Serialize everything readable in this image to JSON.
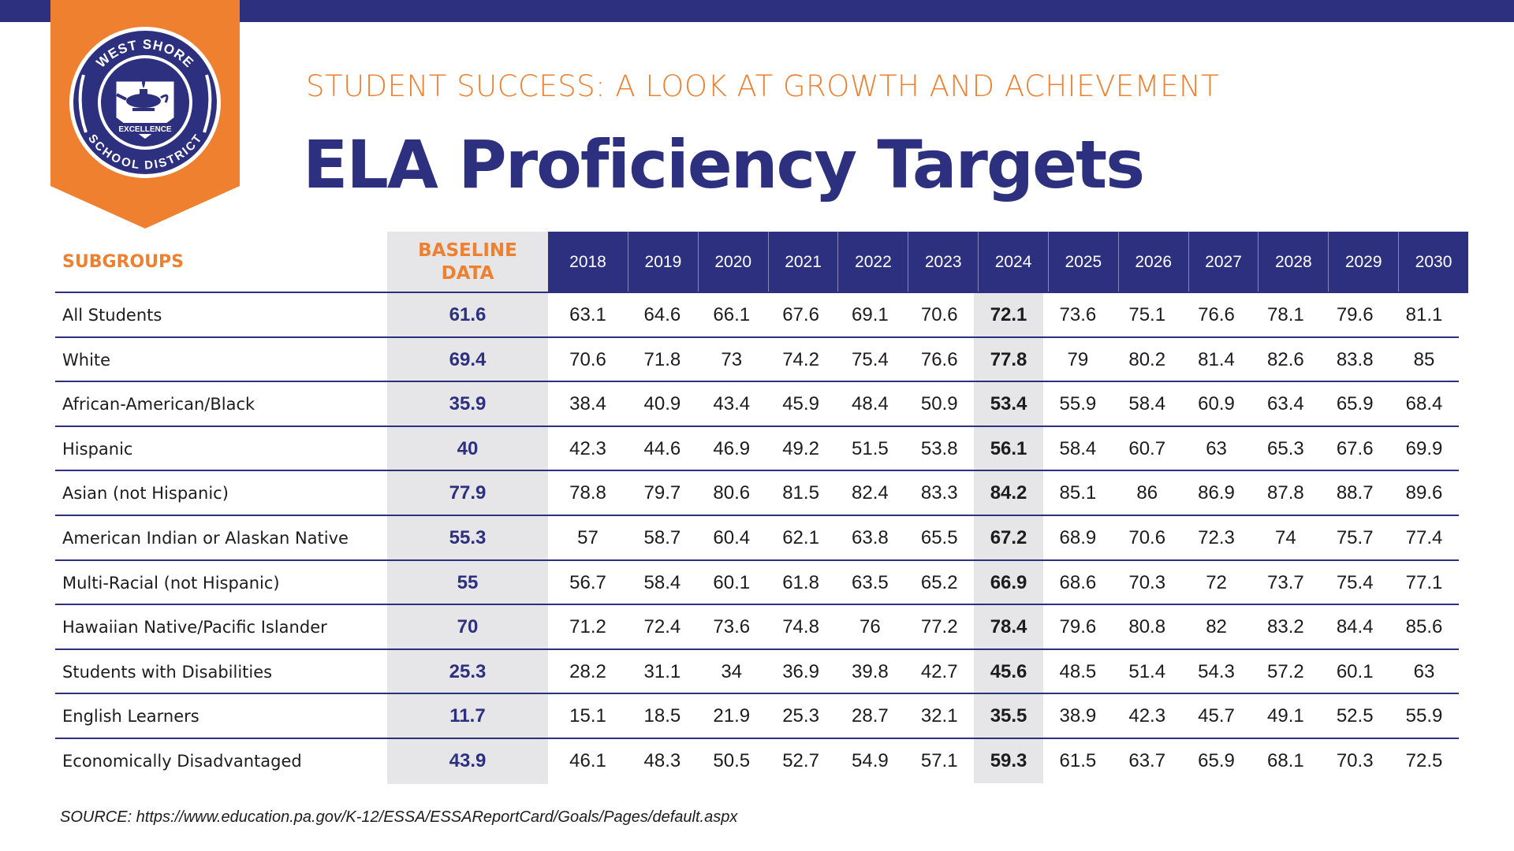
{
  "header": {
    "subtitle": "STUDENT SUCCESS: A LOOK AT GROWTH AND ACHIEVEMENT",
    "title": "ELA Proficiency Targets"
  },
  "logo": {
    "top_text": "WEST SHORE",
    "bottom_text": "SCHOOL DISTRICT",
    "banner_text": "EXCELLENCE",
    "icon": "oil-lamp-icon"
  },
  "colors": {
    "navy": "#2d2f7f",
    "orange": "#ee8030",
    "highlight": "#e6e6e8"
  },
  "table": {
    "subgroups_label": "SUBGROUPS",
    "baseline_label_line1": "BASELINE",
    "baseline_label_line2": "DATA",
    "highlight_year": "2024",
    "years": [
      "2018",
      "2019",
      "2020",
      "2021",
      "2022",
      "2023",
      "2024",
      "2025",
      "2026",
      "2027",
      "2028",
      "2029",
      "2030"
    ],
    "rows": [
      {
        "name": "All Students",
        "baseline": "61.6",
        "values": [
          "63.1",
          "64.6",
          "66.1",
          "67.6",
          "69.1",
          "70.6",
          "72.1",
          "73.6",
          "75.1",
          "76.6",
          "78.1",
          "79.6",
          "81.1"
        ]
      },
      {
        "name": "White",
        "baseline": "69.4",
        "values": [
          "70.6",
          "71.8",
          "73",
          "74.2",
          "75.4",
          "76.6",
          "77.8",
          "79",
          "80.2",
          "81.4",
          "82.6",
          "83.8",
          "85"
        ]
      },
      {
        "name": "African-American/Black",
        "baseline": "35.9",
        "values": [
          "38.4",
          "40.9",
          "43.4",
          "45.9",
          "48.4",
          "50.9",
          "53.4",
          "55.9",
          "58.4",
          "60.9",
          "63.4",
          "65.9",
          "68.4"
        ]
      },
      {
        "name": "Hispanic",
        "baseline": "40",
        "values": [
          "42.3",
          "44.6",
          "46.9",
          "49.2",
          "51.5",
          "53.8",
          "56.1",
          "58.4",
          "60.7",
          "63",
          "65.3",
          "67.6",
          "69.9"
        ]
      },
      {
        "name": "Asian (not Hispanic)",
        "baseline": "77.9",
        "values": [
          "78.8",
          "79.7",
          "80.6",
          "81.5",
          "82.4",
          "83.3",
          "84.2",
          "85.1",
          "86",
          "86.9",
          "87.8",
          "88.7",
          "89.6"
        ]
      },
      {
        "name": "American Indian or Alaskan Native",
        "baseline": "55.3",
        "values": [
          "57",
          "58.7",
          "60.4",
          "62.1",
          "63.8",
          "65.5",
          "67.2",
          "68.9",
          "70.6",
          "72.3",
          "74",
          "75.7",
          "77.4"
        ]
      },
      {
        "name": "Multi-Racial (not Hispanic)",
        "baseline": "55",
        "values": [
          "56.7",
          "58.4",
          "60.1",
          "61.8",
          "63.5",
          "65.2",
          "66.9",
          "68.6",
          "70.3",
          "72",
          "73.7",
          "75.4",
          "77.1"
        ]
      },
      {
        "name": "Hawaiian Native/Pacific Islander",
        "baseline": "70",
        "values": [
          "71.2",
          "72.4",
          "73.6",
          "74.8",
          "76",
          "77.2",
          "78.4",
          "79.6",
          "80.8",
          "82",
          "83.2",
          "84.4",
          "85.6"
        ]
      },
      {
        "name": "Students with Disabilities",
        "baseline": "25.3",
        "values": [
          "28.2",
          "31.1",
          "34",
          "36.9",
          "39.8",
          "42.7",
          "45.6",
          "48.5",
          "51.4",
          "54.3",
          "57.2",
          "60.1",
          "63"
        ]
      },
      {
        "name": "English Learners",
        "baseline": "11.7",
        "values": [
          "15.1",
          "18.5",
          "21.9",
          "25.3",
          "28.7",
          "32.1",
          "35.5",
          "38.9",
          "42.3",
          "45.7",
          "49.1",
          "52.5",
          "55.9"
        ]
      },
      {
        "name": "Economically Disadvantaged",
        "baseline": "43.9",
        "values": [
          "46.1",
          "48.3",
          "50.5",
          "52.7",
          "54.9",
          "57.1",
          "59.3",
          "61.5",
          "63.7",
          "65.9",
          "68.1",
          "70.3",
          "72.5"
        ]
      }
    ]
  },
  "footer": {
    "source": "SOURCE: https://www.education.pa.gov/K-12/ESSA/ESSAReportCard/Goals/Pages/default.aspx"
  }
}
